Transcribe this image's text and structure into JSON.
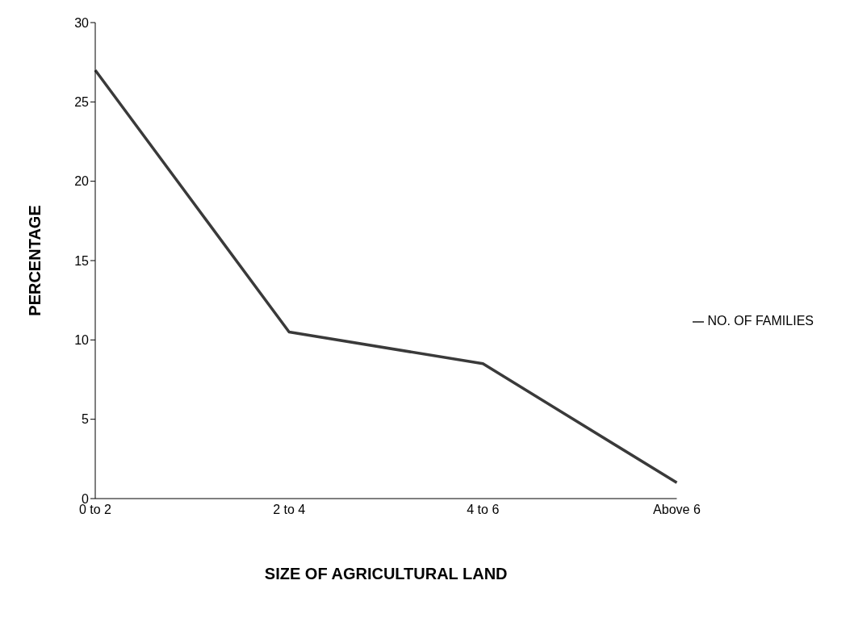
{
  "chart_data": {
    "type": "line",
    "xlabel": "SIZE OF AGRICULTURAL LAND",
    "ylabel": "PERCENTAGE",
    "categories": [
      "0 to 2",
      "2 to 4",
      "4 to 6",
      "Above 6"
    ],
    "series": [
      {
        "name": "NO. OF FAMILIES",
        "color": "#3a3a3a",
        "values": [
          27,
          10.5,
          8.5,
          1
        ]
      }
    ],
    "ylim": [
      0,
      30
    ],
    "yticks": [
      0,
      5,
      10,
      15,
      20,
      25,
      30
    ],
    "grid": false,
    "legend": "right",
    "marker": "none",
    "line_style": "solid"
  }
}
